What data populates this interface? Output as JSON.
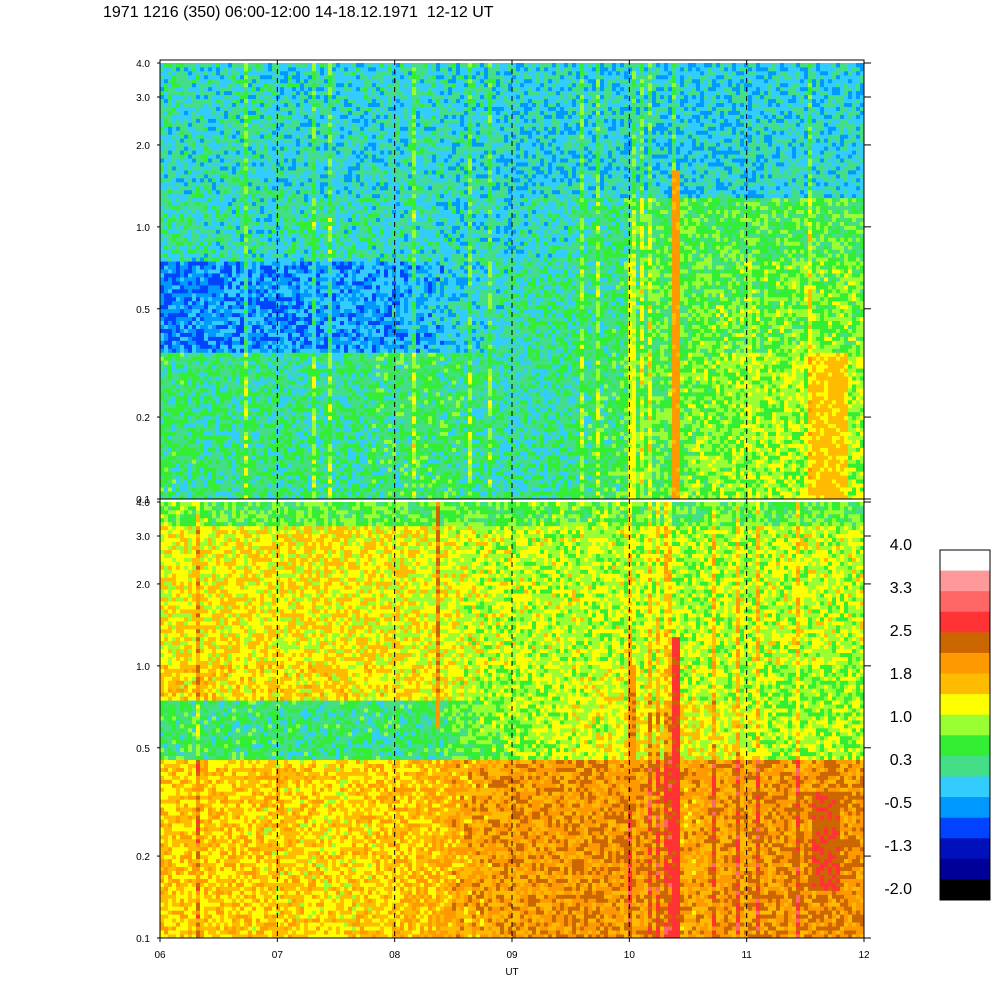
{
  "title": "1971 1216 (350) 06:00-12:00 14-18.12.1971  12-12 UT",
  "chart_data": {
    "type": "heatmap",
    "title": "1971 1216 (350) 06:00-12:00 14-18.12.1971  12-12 UT",
    "xlabel": "UT",
    "x_ticks": [
      "06",
      "07",
      "08",
      "09",
      "10",
      "11",
      "12"
    ],
    "x_range": [
      6,
      12
    ],
    "panels": [
      {
        "name": "",
        "y_scale": "log",
        "y_range": [
          0.1,
          4.0
        ],
        "y_ticks": [
          {
            "value": 0.1,
            "label": "0.1"
          },
          {
            "value": 0.2,
            "label": "0.2"
          },
          {
            "value": 0.5,
            "label": "0.5"
          },
          {
            "value": 1.0,
            "label": "1.0"
          },
          {
            "value": 2.0,
            "label": "2.0"
          },
          {
            "value": 3.0,
            "label": "3.0"
          },
          {
            "value": 4.0,
            "label": "4.0"
          }
        ],
        "bands": [
          {
            "f_low": 0.1,
            "f_high": 0.35,
            "profile": [
              0.5,
              0.4,
              0.4,
              0.6,
              0.3,
              0.5,
              0.9,
              1.1
            ]
          },
          {
            "f_low": 0.35,
            "f_high": 0.75,
            "profile": [
              -0.4,
              -0.3,
              -0.3,
              -0.2,
              0.3,
              0.4,
              0.8,
              0.9
            ]
          },
          {
            "f_low": 0.75,
            "f_high": 1.3,
            "profile": [
              0.3,
              0.2,
              0.3,
              0.2,
              0.1,
              0.4,
              0.8,
              0.7
            ]
          },
          {
            "f_low": 1.3,
            "f_high": 4.0,
            "profile": [
              0.2,
              0.2,
              0.1,
              0.2,
              0.1,
              0.1,
              0.0,
              0.1
            ]
          }
        ],
        "bursts": [
          {
            "x": 10.35,
            "x2": 10.42,
            "f_low": 0.1,
            "f_high": 1.6,
            "level": 2.1
          },
          {
            "x": 10.0,
            "x2": 10.04,
            "f_low": 0.1,
            "f_high": 0.8,
            "level": 1.3
          },
          {
            "x": 11.0,
            "x2": 11.05,
            "f_low": 0.2,
            "f_high": 0.8,
            "level": 1.2
          },
          {
            "x": 11.55,
            "x2": 11.85,
            "f_low": 0.1,
            "f_high": 0.35,
            "level": 1.7
          }
        ]
      },
      {
        "name": "",
        "y_scale": "log",
        "y_range": [
          0.1,
          4.0
        ],
        "y_ticks": [
          {
            "value": 0.1,
            "label": "0.1"
          },
          {
            "value": 0.2,
            "label": "0.2"
          },
          {
            "value": 0.5,
            "label": "0.5"
          },
          {
            "value": 1.0,
            "label": "1.0"
          },
          {
            "value": 2.0,
            "label": "2.0"
          },
          {
            "value": 3.0,
            "label": "3.0"
          },
          {
            "value": 4.0,
            "label": "4.0"
          }
        ],
        "bands": [
          {
            "f_low": 0.1,
            "f_high": 0.45,
            "profile": [
              1.7,
              1.7,
              1.6,
              1.8,
              2.1,
              2.2,
              2.0,
              2.2
            ]
          },
          {
            "f_low": 0.45,
            "f_high": 0.75,
            "profile": [
              0.6,
              0.5,
              0.5,
              0.5,
              1.0,
              1.3,
              1.5,
              1.1
            ]
          },
          {
            "f_low": 0.75,
            "f_high": 1.0,
            "profile": [
              1.7,
              1.6,
              1.6,
              1.5,
              1.0,
              1.3,
              1.2,
              1.0
            ]
          },
          {
            "f_low": 1.0,
            "f_high": 3.3,
            "profile": [
              1.4,
              1.5,
              1.5,
              1.4,
              1.2,
              1.2,
              1.1,
              1.2
            ]
          },
          {
            "f_low": 3.3,
            "f_high": 4.0,
            "profile": [
              0.9,
              0.8,
              0.8,
              0.8,
              0.8,
              0.9,
              0.7,
              0.8
            ]
          }
        ],
        "bursts": [
          {
            "x": 10.35,
            "x2": 10.43,
            "f_low": 0.1,
            "f_high": 1.3,
            "level": 2.8
          },
          {
            "x": 10.0,
            "x2": 10.06,
            "f_low": 0.3,
            "f_high": 1.0,
            "level": 2.2
          },
          {
            "x": 11.55,
            "x2": 11.8,
            "f_low": 0.15,
            "f_high": 0.35,
            "level": 2.6
          },
          {
            "x": 8.35,
            "x2": 8.38,
            "f_low": 0.6,
            "f_high": 4.0,
            "level": 2.3
          }
        ]
      }
    ],
    "colorbar": {
      "labels": [
        "4.0",
        "3.3",
        "2.5",
        "1.8",
        "1.0",
        "0.3",
        "-0.5",
        "-1.3",
        "-2.0"
      ],
      "levels": [
        3.7,
        3.35,
        3.0,
        2.65,
        2.3,
        1.95,
        1.6,
        1.25,
        0.9,
        0.55,
        0.2,
        -0.15,
        -0.5,
        -0.85,
        -1.2,
        -1.55,
        -1.9
      ],
      "colors": [
        "#ffffff",
        "#ff9999",
        "#ff6666",
        "#ff3333",
        "#cc6600",
        "#ff9900",
        "#ffbb00",
        "#ffff00",
        "#99ff33",
        "#33ee33",
        "#44dd88",
        "#33ccff",
        "#0099ff",
        "#0044ff",
        "#0011bb",
        "#000099",
        "#000000"
      ]
    }
  }
}
